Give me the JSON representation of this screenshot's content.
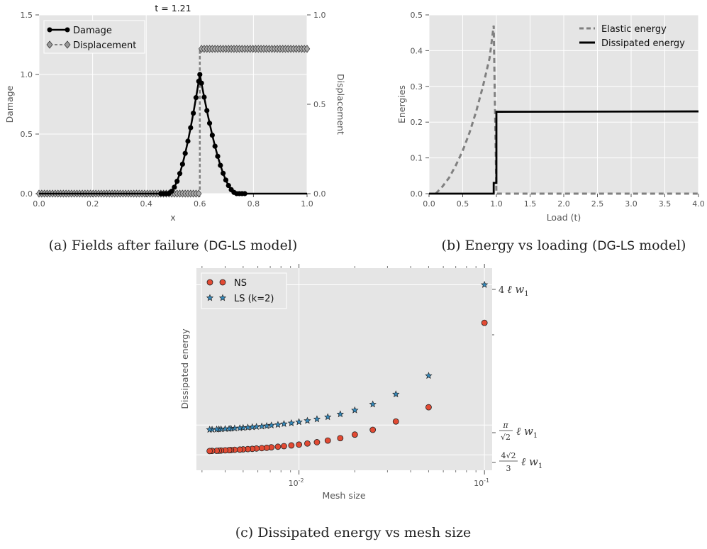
{
  "chart_data": [
    {
      "id": "a",
      "type": "line",
      "title": "t = 1.21",
      "xlabel": "x",
      "ylabel": "Damage",
      "y2label": "Displacement",
      "xlim": [
        0,
        1
      ],
      "ylim": [
        0,
        1.5
      ],
      "y2lim": [
        0,
        1
      ],
      "xticks": [
        0,
        0.2,
        0.4,
        0.6,
        0.8,
        1.0
      ],
      "xtick_labels": [
        "0.0",
        "0.2",
        "0.4",
        "0.6",
        "0.8",
        "1.0"
      ],
      "yticks": [
        0,
        0.5,
        1.0,
        1.5
      ],
      "ytick_labels": [
        "0.0",
        "0.5",
        "1.0",
        "1.5"
      ],
      "y2ticks": [
        0,
        0.5,
        1.0
      ],
      "y2tick_labels": [
        "0.0",
        "0.5",
        "1.0"
      ],
      "grid": true,
      "legend_position": "top-left",
      "series": [
        {
          "name": "Damage",
          "axis": "left",
          "style": "solid-circle",
          "color": "#000000",
          "peak_x": 0.6,
          "peak_y": 1.0,
          "support": [
            0.48,
            0.74
          ],
          "n_points": 100
        },
        {
          "name": "Displacement",
          "axis": "right",
          "style": "dashed-diamond",
          "color": "#808080",
          "jump_x": 0.6,
          "left_value": 0.0,
          "right_value": 0.81,
          "n_points": 100
        }
      ]
    },
    {
      "id": "b",
      "type": "line",
      "xlabel": "Load (t)",
      "ylabel": "Energies",
      "xlim": [
        0,
        4
      ],
      "ylim": [
        0,
        0.5
      ],
      "xticks": [
        0,
        0.5,
        1.0,
        1.5,
        2.0,
        2.5,
        3.0,
        3.5,
        4.0
      ],
      "xtick_labels": [
        "0.0",
        "0.5",
        "1.0",
        "1.5",
        "2.0",
        "2.5",
        "3.0",
        "3.5",
        "4.0"
      ],
      "yticks": [
        0,
        0.1,
        0.2,
        0.3,
        0.4,
        0.5
      ],
      "ytick_labels": [
        "0.0",
        "0.1",
        "0.2",
        "0.3",
        "0.4",
        "0.5"
      ],
      "grid": true,
      "legend_position": "top-right",
      "series": [
        {
          "name": "Elastic energy",
          "style": "dashed",
          "color": "#808080",
          "x": [
            0.1,
            0.2,
            0.3,
            0.4,
            0.5,
            0.6,
            0.7,
            0.8,
            0.9,
            0.96,
            1.0,
            1.05,
            4.0
          ],
          "y": [
            0.0,
            0.02,
            0.045,
            0.08,
            0.12,
            0.17,
            0.23,
            0.3,
            0.38,
            0.47,
            0.0,
            0.0,
            0.0
          ]
        },
        {
          "name": "Dissipated energy",
          "style": "solid",
          "color": "#000000",
          "x": [
            0.0,
            0.96,
            0.96,
            1.0,
            1.0,
            4.0
          ],
          "y": [
            0.0,
            0.0,
            0.03,
            0.03,
            0.229,
            0.23
          ]
        }
      ]
    },
    {
      "id": "c",
      "type": "scatter",
      "xlabel": "Mesh size",
      "ylabel": "Dissipated energy",
      "xscale": "log",
      "xlim": [
        0.0028,
        0.11
      ],
      "xticks": [
        0.01,
        0.1
      ],
      "xtick_labels": [
        "10",
        "10"
      ],
      "xtick_exponents": [
        "-2",
        "-1"
      ],
      "grid": true,
      "legend_position": "top-left",
      "y_reference_labels": [
        "4 ℓ w1",
        "π/√2 ℓ w1",
        "4√2/3 ℓ w1"
      ],
      "series": [
        {
          "name": "NS",
          "marker": "circle",
          "color": "#E24A33",
          "x": [
            0.1,
            0.05,
            0.0333,
            0.025,
            0.02,
            0.0167,
            0.0143,
            0.0125,
            0.0111,
            0.01,
            0.0091,
            0.0083,
            0.0077,
            0.0071,
            0.0067,
            0.0063,
            0.0059,
            0.0056,
            0.0053,
            0.005,
            0.0048,
            0.0045,
            0.0043,
            0.0042,
            0.004,
            0.0038,
            0.0037,
            0.0036,
            0.0034,
            0.0033
          ],
          "y": [
            3.64,
            2.93,
            2.81,
            2.74,
            2.7,
            2.67,
            2.65,
            2.636,
            2.625,
            2.616,
            2.609,
            2.603,
            2.598,
            2.593,
            2.589,
            2.586,
            2.583,
            2.58,
            2.578,
            2.576,
            2.574,
            2.572,
            2.57,
            2.569,
            2.568,
            2.566,
            2.565,
            2.564,
            2.563,
            2.562
          ]
        },
        {
          "name": "LS (k=2)",
          "marker": "star",
          "color": "#348ABD",
          "x": [
            0.1,
            0.05,
            0.0333,
            0.025,
            0.02,
            0.0167,
            0.0143,
            0.0125,
            0.0111,
            0.01,
            0.0091,
            0.0083,
            0.0077,
            0.0071,
            0.0067,
            0.0063,
            0.0059,
            0.0056,
            0.0053,
            0.005,
            0.0048,
            0.0045,
            0.0043,
            0.0042,
            0.004,
            0.0038,
            0.0037,
            0.0036,
            0.0034,
            0.0033
          ],
          "y": [
            3.96,
            3.195,
            3.04,
            2.955,
            2.905,
            2.872,
            2.848,
            2.83,
            2.817,
            2.806,
            2.797,
            2.79,
            2.783,
            2.778,
            2.773,
            2.769,
            2.766,
            2.763,
            2.76,
            2.757,
            2.755,
            2.753,
            2.751,
            2.749,
            2.748,
            2.746,
            2.745,
            2.744,
            2.743,
            2.742
          ]
        }
      ]
    }
  ],
  "captions": {
    "a_main": "(a) Fields after failure (",
    "a_code": "DG-LS",
    "a_end": " model)",
    "b_main": "(b) Energy vs loading (",
    "b_code": "DG-LS",
    "b_end": " model)",
    "c": "(c) Dissipated energy vs mesh size"
  },
  "colors": {
    "panel_bg": "#E5E5E5",
    "grid": "#FFFFFF",
    "ns": "#E24A33",
    "ls": "#348ABD"
  }
}
